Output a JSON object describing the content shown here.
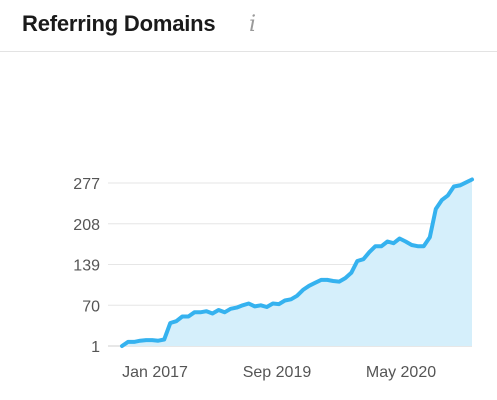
{
  "widget": {
    "title": "Referring Domains",
    "info_icon": "info-icon"
  },
  "chart_data": {
    "type": "area",
    "title": "Referring Domains",
    "xlabel": "",
    "ylabel": "",
    "y_ticks": [
      "277",
      "208",
      "139",
      "70",
      "1"
    ],
    "x_ticks": [
      "Jan 2017",
      "Sep 2019",
      "May 2020"
    ],
    "ylim": [
      1,
      277
    ],
    "grid": true,
    "series_color": "#35b2ef",
    "fill_color": "#d5effb",
    "series": [
      {
        "values": [
          1,
          8,
          8,
          10,
          11,
          11,
          10,
          12,
          40,
          43,
          51,
          51,
          58,
          58,
          60,
          56,
          62,
          58,
          64,
          66,
          70,
          73,
          68,
          70,
          67,
          73,
          72,
          78,
          80,
          86,
          96,
          103,
          108,
          113,
          113,
          111,
          110,
          116,
          125,
          145,
          148,
          160,
          170,
          170,
          178,
          175,
          183,
          178,
          172,
          170,
          170,
          185,
          233,
          248,
          256,
          271,
          273,
          278,
          283
        ]
      }
    ]
  }
}
